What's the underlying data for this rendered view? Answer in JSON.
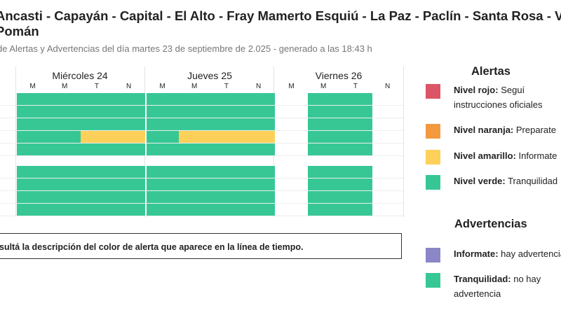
{
  "header": {
    "title_line1": "Ancasti - Capayán - Capital - El Alto - Fray Mamerto Esquiú - La Paz - Paclín - Santa Rosa - Valle",
    "title_line2": "Pomán",
    "subtitle": "de Alertas y Advertencias del día martes 23 de septiembre de 2.025 - generado a las 18:43 h"
  },
  "timeline": {
    "days": [
      "Miércoles 24",
      "Jueves 25",
      "Viernes 26"
    ],
    "slots": [
      "M",
      "M",
      "T",
      "N"
    ],
    "rows": [
      [
        "verde",
        "verde",
        "verde",
        "verde",
        "verde",
        "verde",
        "verde",
        "verde",
        null,
        "verde",
        "verde",
        null
      ],
      [
        "verde",
        "verde",
        "verde",
        "verde",
        "verde",
        "verde",
        "verde",
        "verde",
        null,
        "verde",
        "verde",
        null
      ],
      [
        "verde",
        "verde",
        "verde",
        "verde",
        "verde",
        "verde",
        "verde",
        "verde",
        null,
        "verde",
        "verde",
        null
      ],
      [
        "verde",
        "verde",
        "amarillo",
        "amarillo",
        "verde",
        "amarillo",
        "amarillo",
        "amarillo",
        null,
        "verde",
        "verde",
        null
      ],
      [
        "verde",
        "verde",
        "verde",
        "verde",
        "verde",
        "verde",
        "verde",
        "verde",
        null,
        "verde",
        "verde",
        null
      ],
      "gap",
      [
        "verde",
        "verde",
        "verde",
        "verde",
        "verde",
        "verde",
        "verde",
        "verde",
        null,
        "verde",
        "verde",
        null
      ],
      [
        "verde",
        "verde",
        "verde",
        "verde",
        "verde",
        "verde",
        "verde",
        "verde",
        null,
        "verde",
        "verde",
        null
      ],
      [
        "verde",
        "verde",
        "verde",
        "verde",
        "verde",
        "verde",
        "verde",
        "verde",
        null,
        "verde",
        "verde",
        null
      ],
      [
        "verde",
        "verde",
        "verde",
        "verde",
        "verde",
        "verde",
        "verde",
        "verde",
        null,
        "verde",
        "verde",
        null
      ]
    ]
  },
  "colors": {
    "rojo": "#dc5566",
    "naranja": "#f39a3f",
    "amarillo": "#fdd05a",
    "verde": "#36c795",
    "violeta": "#8b86c6"
  },
  "note": "sultá la descripción del color de alerta que aparece en la línea de tiempo.",
  "legend": {
    "alertas_title": "Alertas",
    "alertas": [
      {
        "label": "Nivel rojo:",
        "text": " Seguí",
        "text2": "instrucciones oficiales",
        "color": "rojo"
      },
      {
        "label": "Nivel naranja:",
        "text": " Preparate",
        "color": "naranja"
      },
      {
        "label": "Nivel amarillo:",
        "text": " Informate",
        "color": "amarillo"
      },
      {
        "label": "Nivel verde:",
        "text": " Tranquilidad",
        "color": "verde"
      }
    ],
    "advertencias_title": "Advertencias",
    "advertencias": [
      {
        "label": "Informate:",
        "text": " hay advertencia",
        "color": "violeta"
      },
      {
        "label": "Tranquilidad:",
        "text": " no hay",
        "text2": "advertencia",
        "color": "verde"
      }
    ]
  }
}
